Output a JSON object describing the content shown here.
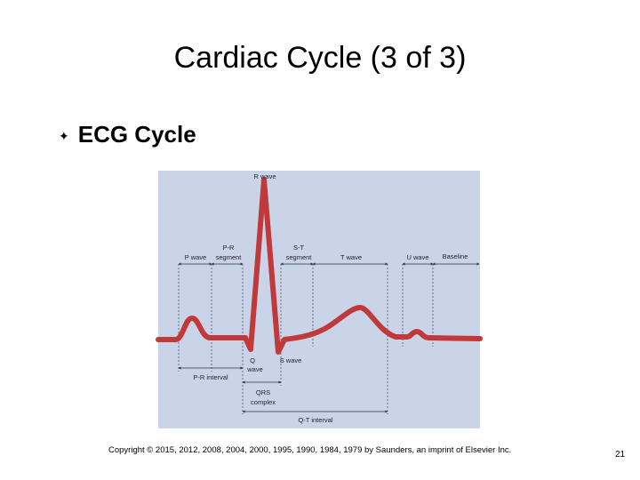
{
  "title": "Cardiac Cycle (3 of 3)",
  "bullet": "ECG Cycle",
  "diagram": {
    "labels": {
      "r_wave": "R wave",
      "p_wave": "P wave",
      "pr_segment": [
        "P-R",
        "segment"
      ],
      "st_segment": [
        "S-T",
        "segment"
      ],
      "t_wave": "T wave",
      "u_wave": "U wave",
      "baseline": "Baseline",
      "q_wave": [
        "Q",
        "wave"
      ],
      "s_wave": "S wave",
      "pr_interval": "P-R interval",
      "qrs_complex": [
        "QRS",
        "complex"
      ],
      "qt_interval": "Q-T interval"
    }
  },
  "copyright": "Copyright © 2015, 2012, 2008, 2004, 2000, 1995, 1990, 1984, 1979 by Saunders, an imprint of Elsevier Inc.",
  "page_number": "21"
}
